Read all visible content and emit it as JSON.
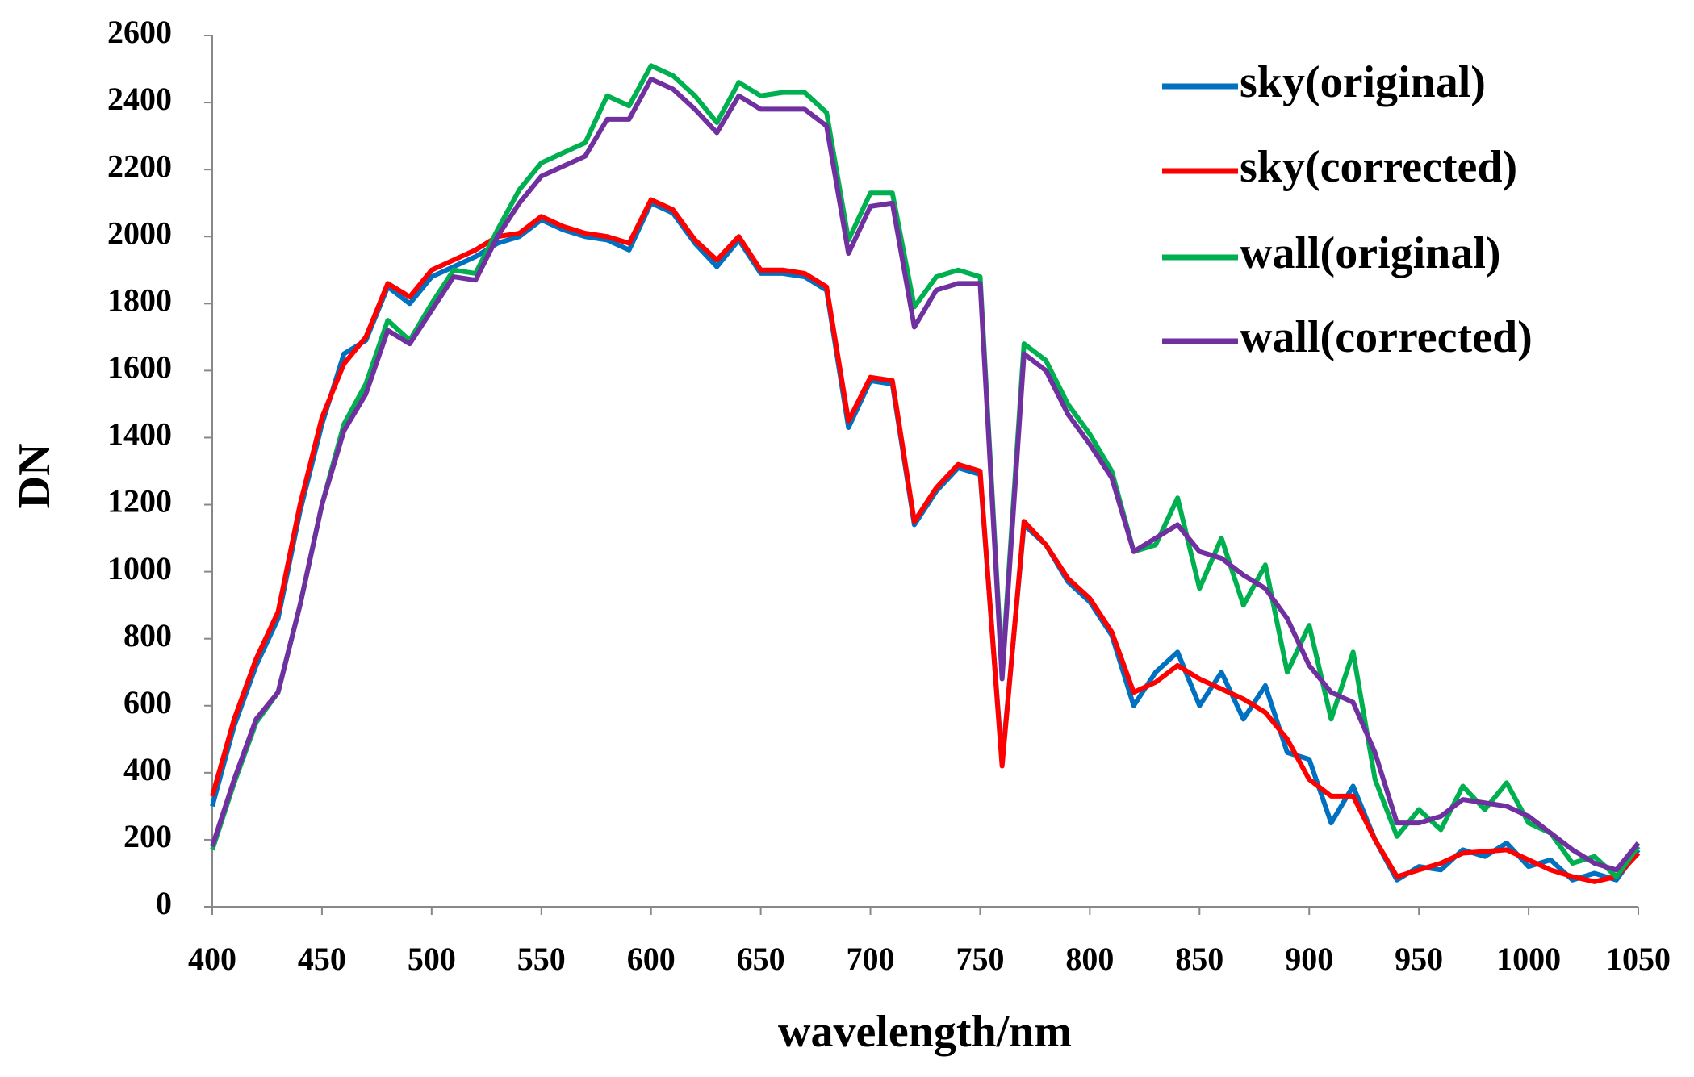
{
  "chart_data": {
    "type": "line",
    "x_label": "wavelength/nm",
    "y_label": "DN",
    "x": [
      400,
      410,
      420,
      430,
      440,
      450,
      460,
      470,
      480,
      490,
      500,
      510,
      520,
      530,
      540,
      550,
      560,
      570,
      580,
      590,
      600,
      610,
      620,
      630,
      640,
      650,
      660,
      670,
      680,
      690,
      700,
      710,
      720,
      730,
      740,
      750,
      760,
      770,
      780,
      790,
      800,
      810,
      820,
      830,
      840,
      850,
      860,
      870,
      880,
      890,
      900,
      910,
      920,
      930,
      940,
      950,
      960,
      970,
      980,
      990,
      1000,
      1010,
      1020,
      1030,
      1040,
      1050
    ],
    "series": [
      {
        "name": "sky(original)",
        "color": "#0070c0",
        "values": [
          300,
          540,
          720,
          860,
          1180,
          1440,
          1650,
          1690,
          1850,
          1800,
          1880,
          1910,
          1940,
          1980,
          2000,
          2050,
          2020,
          2000,
          1990,
          1960,
          2100,
          2070,
          1980,
          1910,
          1990,
          1890,
          1890,
          1880,
          1840,
          1430,
          1570,
          1560,
          1140,
          1240,
          1310,
          1290,
          430,
          1140,
          1080,
          970,
          910,
          810,
          600,
          700,
          760,
          600,
          700,
          560,
          660,
          460,
          440,
          250,
          360,
          200,
          80,
          120,
          110,
          170,
          150,
          190,
          120,
          140,
          80,
          100,
          80,
          170
        ]
      },
      {
        "name": "sky(corrected)",
        "color": "#ff0000",
        "values": [
          330,
          560,
          740,
          880,
          1200,
          1460,
          1620,
          1700,
          1860,
          1820,
          1900,
          1930,
          1960,
          2000,
          2010,
          2060,
          2030,
          2010,
          2000,
          1980,
          2110,
          2080,
          1990,
          1930,
          2000,
          1900,
          1900,
          1890,
          1850,
          1450,
          1580,
          1570,
          1150,
          1250,
          1320,
          1300,
          420,
          1150,
          1080,
          980,
          920,
          820,
          640,
          670,
          720,
          680,
          650,
          620,
          580,
          500,
          380,
          330,
          330,
          200,
          90,
          110,
          130,
          160,
          165,
          170,
          140,
          110,
          90,
          75,
          90,
          160
        ]
      },
      {
        "name": "wall(original)",
        "color": "#00b050",
        "values": [
          170,
          370,
          550,
          640,
          900,
          1200,
          1440,
          1560,
          1750,
          1690,
          1800,
          1900,
          1890,
          2020,
          2140,
          2220,
          2250,
          2280,
          2420,
          2390,
          2510,
          2480,
          2420,
          2340,
          2460,
          2420,
          2430,
          2430,
          2370,
          1990,
          2130,
          2130,
          1790,
          1880,
          1900,
          1880,
          700,
          1680,
          1630,
          1500,
          1410,
          1300,
          1060,
          1080,
          1220,
          950,
          1100,
          900,
          1020,
          700,
          840,
          560,
          760,
          380,
          210,
          290,
          230,
          360,
          290,
          370,
          250,
          220,
          130,
          150,
          90,
          180
        ]
      },
      {
        "name": "wall(corrected)",
        "color": "#7030a0",
        "values": [
          180,
          380,
          560,
          640,
          900,
          1200,
          1420,
          1530,
          1720,
          1680,
          1780,
          1880,
          1870,
          2000,
          2100,
          2180,
          2210,
          2240,
          2350,
          2350,
          2470,
          2440,
          2380,
          2310,
          2420,
          2380,
          2380,
          2380,
          2330,
          1950,
          2090,
          2100,
          1730,
          1840,
          1860,
          1860,
          680,
          1650,
          1600,
          1470,
          1380,
          1280,
          1060,
          1100,
          1140,
          1060,
          1040,
          990,
          950,
          860,
          720,
          640,
          610,
          460,
          250,
          250,
          270,
          320,
          310,
          300,
          270,
          220,
          170,
          130,
          110,
          190
        ]
      }
    ],
    "xlim": [
      400,
      1050
    ],
    "xticks": [
      400,
      450,
      500,
      550,
      600,
      650,
      700,
      750,
      800,
      850,
      900,
      950,
      1000,
      1050
    ],
    "ylim": [
      0,
      2600
    ],
    "yticks": [
      0,
      200,
      400,
      600,
      800,
      1000,
      1200,
      1400,
      1600,
      1800,
      2000,
      2200,
      2400,
      2600
    ],
    "grid": false,
    "legend": "upper right"
  }
}
